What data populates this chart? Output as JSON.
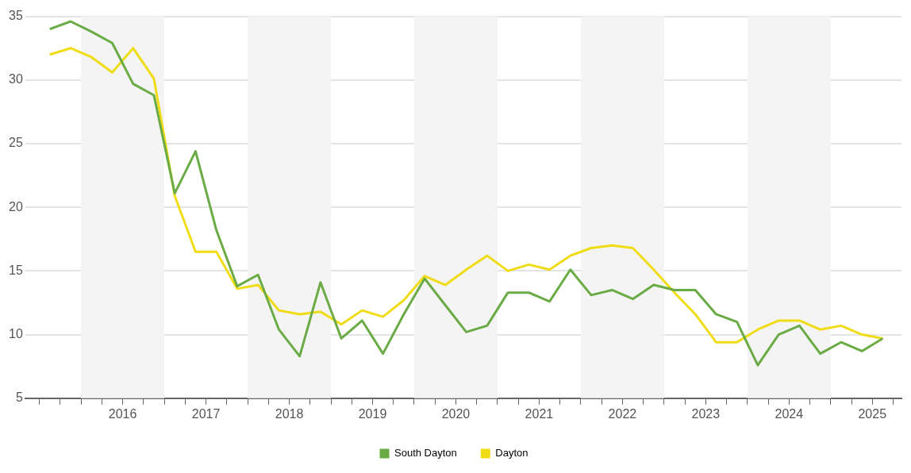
{
  "chart_data": {
    "type": "line",
    "x": [
      2015.625,
      2015.875,
      2016.125,
      2016.375,
      2016.625,
      2016.875,
      2017.125,
      2017.375,
      2017.625,
      2017.875,
      2018.125,
      2018.375,
      2018.625,
      2018.875,
      2019.125,
      2019.375,
      2019.625,
      2019.875,
      2020.125,
      2020.375,
      2020.625,
      2020.875,
      2021.125,
      2021.375,
      2021.625,
      2021.875,
      2022.125,
      2022.375,
      2022.625,
      2022.875,
      2023.125,
      2023.375,
      2023.625,
      2023.875,
      2024.125,
      2024.375,
      2024.625,
      2024.875,
      2025.125,
      2025.375,
      2025.625
    ],
    "series": [
      {
        "name": "South Dayton",
        "color": "#6aab45",
        "values": [
          34.0,
          34.6,
          33.8,
          32.9,
          29.7,
          28.8,
          21.1,
          24.4,
          18.2,
          13.8,
          14.7,
          10.4,
          8.3,
          14.1,
          9.7,
          11.1,
          8.5,
          11.6,
          14.4,
          12.3,
          10.2,
          10.7,
          13.3,
          13.3,
          12.6,
          15.1,
          13.1,
          13.5,
          12.8,
          13.9,
          13.5,
          13.5,
          11.6,
          11.0,
          7.6,
          10.0,
          10.7,
          8.5,
          9.4,
          8.7,
          9.7
        ]
      },
      {
        "name": "Dayton",
        "color": "#f0dc14",
        "values": [
          32.0,
          32.5,
          31.8,
          30.6,
          32.5,
          30.1,
          20.9,
          16.5,
          16.5,
          13.6,
          13.9,
          11.9,
          11.6,
          11.8,
          10.8,
          11.9,
          11.4,
          12.7,
          14.6,
          13.9,
          15.1,
          16.2,
          15.0,
          15.5,
          15.1,
          16.2,
          16.8,
          17.0,
          16.8,
          15.1,
          13.3,
          11.6,
          9.4,
          9.4,
          10.4,
          11.1,
          11.1,
          10.4,
          10.7,
          10.0,
          9.7
        ]
      }
    ],
    "xlim": [
      2015.33,
      2025.85
    ],
    "xticks": [
      {
        "value": 2015.5,
        "label": null
      },
      {
        "value": 2015.75,
        "label": null
      },
      {
        "value": 2016,
        "label": null
      },
      {
        "value": 2016.25,
        "label": null
      },
      {
        "value": 2016.5,
        "label": "2016"
      },
      {
        "value": 2016.75,
        "label": null
      },
      {
        "value": 2017,
        "label": null
      },
      {
        "value": 2017.25,
        "label": null
      },
      {
        "value": 2017.5,
        "label": "2017"
      },
      {
        "value": 2017.75,
        "label": null
      },
      {
        "value": 2018,
        "label": null
      },
      {
        "value": 2018.25,
        "label": null
      },
      {
        "value": 2018.5,
        "label": "2018"
      },
      {
        "value": 2018.75,
        "label": null
      },
      {
        "value": 2019,
        "label": null
      },
      {
        "value": 2019.25,
        "label": null
      },
      {
        "value": 2019.5,
        "label": "2019"
      },
      {
        "value": 2019.75,
        "label": null
      },
      {
        "value": 2020,
        "label": null
      },
      {
        "value": 2020.25,
        "label": null
      },
      {
        "value": 2020.5,
        "label": "2020"
      },
      {
        "value": 2020.75,
        "label": null
      },
      {
        "value": 2021,
        "label": null
      },
      {
        "value": 2021.25,
        "label": null
      },
      {
        "value": 2021.5,
        "label": "2021"
      },
      {
        "value": 2021.75,
        "label": null
      },
      {
        "value": 2022,
        "label": null
      },
      {
        "value": 2022.25,
        "label": null
      },
      {
        "value": 2022.5,
        "label": "2022"
      },
      {
        "value": 2022.75,
        "label": null
      },
      {
        "value": 2023,
        "label": null
      },
      {
        "value": 2023.25,
        "label": null
      },
      {
        "value": 2023.5,
        "label": "2023"
      },
      {
        "value": 2023.75,
        "label": null
      },
      {
        "value": 2024,
        "label": null
      },
      {
        "value": 2024.25,
        "label": null
      },
      {
        "value": 2024.5,
        "label": "2024"
      },
      {
        "value": 2024.75,
        "label": null
      },
      {
        "value": 2025,
        "label": null
      },
      {
        "value": 2025.25,
        "label": null
      },
      {
        "value": 2025.5,
        "label": "2025"
      },
      {
        "value": 2025.75,
        "label": null
      }
    ],
    "ylim": [
      5,
      35
    ],
    "yticks": [
      5,
      10,
      15,
      20,
      25,
      30,
      35
    ],
    "bands": [
      {
        "axis": "x",
        "from": 2016,
        "to": 2017,
        "color": "#f4f4f4"
      },
      {
        "axis": "x",
        "from": 2018,
        "to": 2019,
        "color": "#f4f4f4"
      },
      {
        "axis": "x",
        "from": 2020,
        "to": 2021,
        "color": "#f4f4f4"
      },
      {
        "axis": "x",
        "from": 2022,
        "to": 2023,
        "color": "#f4f4f4"
      },
      {
        "axis": "x",
        "from": 2024,
        "to": 2025,
        "color": "#f4f4f4"
      }
    ],
    "grid": "y",
    "legend": "bottom",
    "marker": "none",
    "line_style": "solid"
  }
}
